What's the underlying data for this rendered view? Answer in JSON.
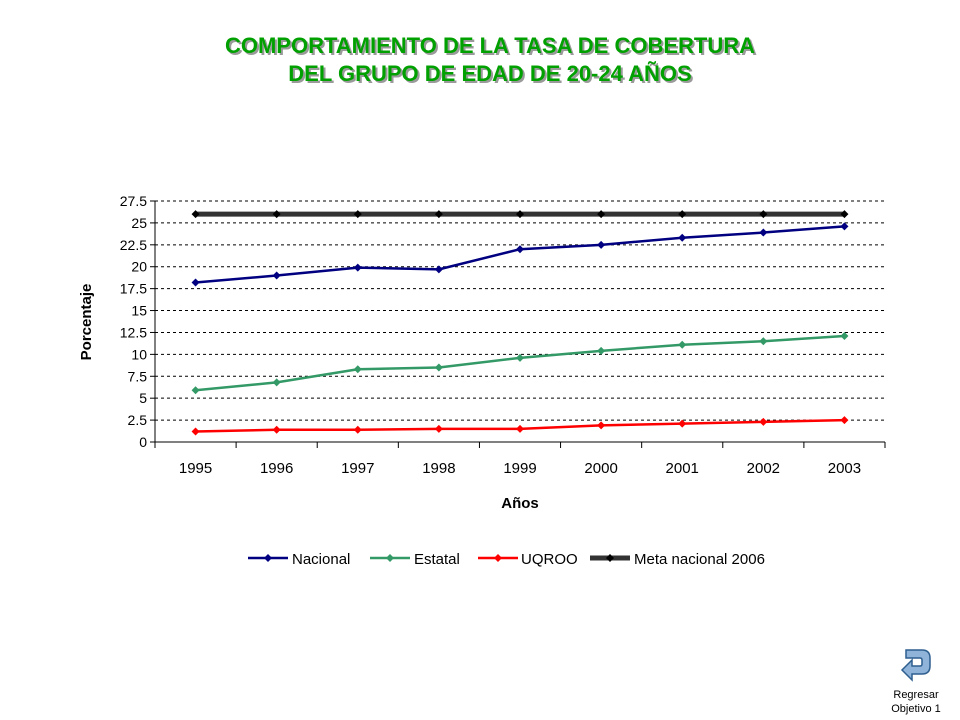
{
  "title": {
    "line1": "COMPORTAMIENTO DE LA TASA DE COBERTURA",
    "line2": "DEL GRUPO DE EDAD DE 20-24 AÑOS"
  },
  "chart_data": {
    "type": "line",
    "x": [
      "1995",
      "1996",
      "1997",
      "1998",
      "1999",
      "2000",
      "2001",
      "2002",
      "2003"
    ],
    "xlabel": "Años",
    "ylabel": "Porcentaje",
    "ylim": [
      0,
      27.5
    ],
    "yticks": [
      "0",
      "2.5",
      "5",
      "7.5",
      "10",
      "12.5",
      "15",
      "17.5",
      "20",
      "22.5",
      "25",
      "27.5"
    ],
    "grid": "horizontal dashed",
    "legend_position": "bottom",
    "series": [
      {
        "name": "Nacional",
        "color": "#000080",
        "values": [
          18.2,
          19.0,
          19.9,
          19.7,
          22.0,
          22.5,
          23.3,
          23.9,
          24.6
        ]
      },
      {
        "name": "Estatal",
        "color": "#339966",
        "values": [
          5.9,
          6.8,
          8.3,
          8.5,
          9.6,
          10.4,
          11.1,
          11.5,
          12.1
        ]
      },
      {
        "name": "UQROO",
        "color": "#ff0000",
        "values": [
          1.2,
          1.4,
          1.4,
          1.5,
          1.5,
          1.9,
          2.1,
          2.3,
          2.5
        ]
      },
      {
        "name": "Meta nacional 2006",
        "color": "#333333",
        "values": [
          26,
          26,
          26,
          26,
          26,
          26,
          26,
          26,
          26
        ]
      }
    ]
  },
  "nav": {
    "back_line1": "Regresar",
    "back_line2": "Objetivo 1",
    "icon": "return-arrow-icon"
  }
}
